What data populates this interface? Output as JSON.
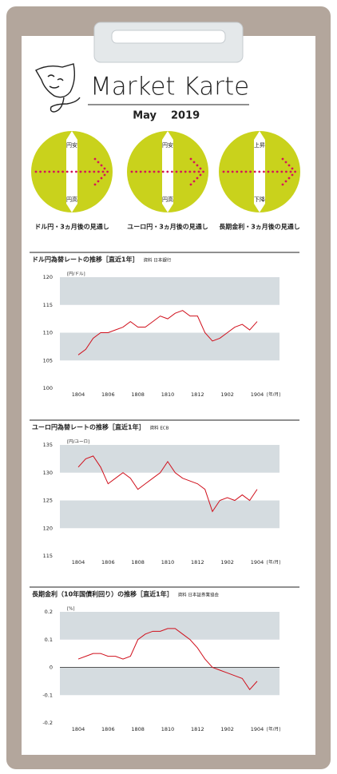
{
  "header": {
    "title": "Market Karte",
    "month": "May",
    "year": "2019"
  },
  "outlook": [
    {
      "up": "円安",
      "down": "円高",
      "caption": "ドル円・3ヵ月後の見通し"
    },
    {
      "up": "円安",
      "down": "円高",
      "caption": "ユーロ円・3ヵ月後の見通し"
    },
    {
      "up": "上昇",
      "down": "下降",
      "caption": "長期金利・3ヵ月後の見通し"
    }
  ],
  "chart_data": [
    {
      "type": "line",
      "title": "ドル円為替レートの推移［直近1年］",
      "source": "資料 日本銀行",
      "y_unit": "[円/ドル]",
      "x_unit": "[年/月]",
      "color": "#d0101c",
      "categories": [
        "1804",
        null,
        null,
        null,
        "1806",
        null,
        null,
        null,
        "1808",
        null,
        null,
        null,
        "1810",
        null,
        null,
        null,
        "1812",
        null,
        null,
        null,
        "1902",
        null,
        null,
        null,
        "1904"
      ],
      "values": [
        106,
        107,
        109,
        110,
        110,
        110.5,
        111,
        112,
        111,
        111,
        112,
        113,
        112.5,
        113.5,
        114,
        113,
        113,
        110,
        108.5,
        109,
        110,
        111,
        111.5,
        110.5,
        112
      ],
      "ylim": [
        100,
        120
      ],
      "yticks": [
        100,
        105,
        110,
        115,
        120
      ]
    },
    {
      "type": "line",
      "title": "ユーロ円為替レートの推移［直近1年］",
      "source": "資料 ECB",
      "y_unit": "[円/ユーロ]",
      "x_unit": "[年/月]",
      "color": "#d0101c",
      "categories": [
        "1804",
        null,
        null,
        null,
        "1806",
        null,
        null,
        null,
        "1808",
        null,
        null,
        null,
        "1810",
        null,
        null,
        null,
        "1812",
        null,
        null,
        null,
        "1902",
        null,
        null,
        null,
        "1904"
      ],
      "values": [
        131,
        132.5,
        133,
        131,
        128,
        129,
        130,
        129,
        127,
        128,
        129,
        130,
        132,
        130,
        129,
        128.5,
        128,
        127,
        123,
        125,
        125.5,
        125,
        126,
        125,
        127
      ],
      "ylim": [
        115,
        135
      ],
      "yticks": [
        115,
        120,
        125,
        130,
        135
      ]
    },
    {
      "type": "line",
      "title": "長期金利（10年国債利回り）の推移［直近1年］",
      "source": "資料 日本証券業協会",
      "y_unit": "[%]",
      "x_unit": "[年/月]",
      "color": "#d0101c",
      "categories": [
        "1804",
        null,
        null,
        null,
        "1806",
        null,
        null,
        null,
        "1808",
        null,
        null,
        null,
        "1810",
        null,
        null,
        null,
        "1812",
        null,
        null,
        null,
        "1902",
        null,
        null,
        null,
        "1904"
      ],
      "values": [
        0.03,
        0.04,
        0.05,
        0.05,
        0.04,
        0.04,
        0.03,
        0.04,
        0.1,
        0.12,
        0.13,
        0.13,
        0.14,
        0.14,
        0.12,
        0.1,
        0.07,
        0.03,
        0,
        -0.01,
        -0.02,
        -0.03,
        -0.04,
        -0.08,
        -0.05
      ],
      "ylim": [
        -0.2,
        0.2
      ],
      "yticks": [
        -0.2,
        -0.1,
        0,
        0.1,
        0.2
      ]
    }
  ]
}
